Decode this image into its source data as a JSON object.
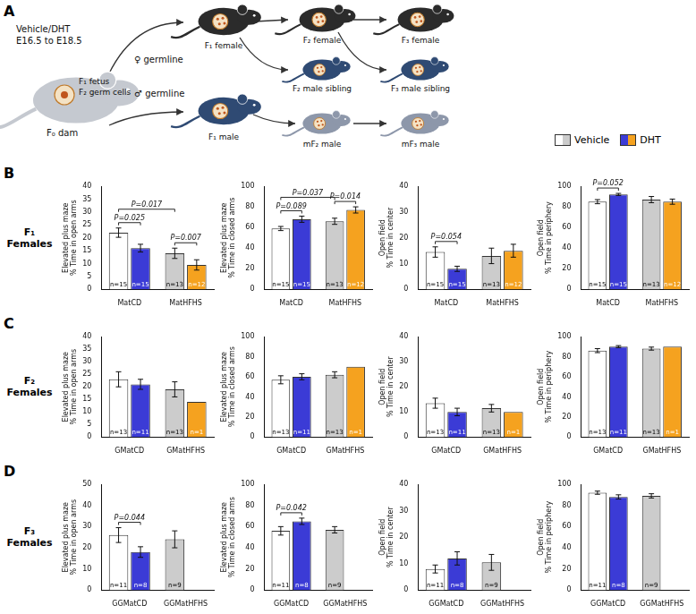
{
  "panel_a": {
    "label": "A",
    "treatment": [
      "Vehicle/DHT",
      "E16.5 to E18.5"
    ],
    "dam": [
      "F₁ fetus",
      "F₂ germ cells",
      "F₀ dam"
    ],
    "germlines": [
      "♀ germline",
      "♂ germline"
    ],
    "mice": [
      "F₁ female",
      "F₂ female",
      "F₃ female",
      "F₂ male sibling",
      "F₃ male sibling",
      "F₁ male",
      "mF₂ male",
      "mF₃ male"
    ]
  },
  "panels": [
    {
      "label": "B",
      "row_label": "F₁ Females"
    },
    {
      "label": "C",
      "row_label": "F₂ Females"
    },
    {
      "label": "D",
      "row_label": "F₃ Females"
    }
  ],
  "chart_data": [
    {
      "type": "bar",
      "y_label": [
        "Elevated plus maze",
        "% Time in open arms"
      ],
      "categories": [
        "MatCD",
        "MatHFHS"
      ],
      "series": [
        {
          "name": "Vehicle",
          "colors": [
            "#ffffff",
            "#cccccc"
          ],
          "values": [
            22,
            14
          ],
          "errors": [
            1.8,
            2.0
          ],
          "n_labels": [
            "n=15",
            "n=13"
          ]
        },
        {
          "name": "DHT",
          "colors": [
            "#3b3bd6",
            "#f5a21f"
          ],
          "values": [
            16,
            9.5
          ],
          "errors": [
            1.5,
            2.0
          ],
          "n_labels": [
            "n=15",
            "n=12"
          ]
        }
      ],
      "ylim": [
        0,
        40
      ],
      "yticks": [
        0,
        5,
        10,
        15,
        20,
        25,
        30,
        35,
        40
      ],
      "grid": false,
      "annotations": [
        {
          "between": [
            [
              0,
              0
            ],
            [
              0,
              1
            ]
          ],
          "text": "P=0.025"
        },
        {
          "between": [
            [
              0,
              0
            ],
            [
              1,
              0
            ]
          ],
          "text": "P=0.017"
        },
        {
          "between": [
            [
              1,
              0
            ],
            [
              1,
              1
            ]
          ],
          "text": "P=0.007"
        }
      ]
    },
    {
      "type": "bar",
      "y_label": [
        "Elevated plus maze",
        "% Time in closed arms"
      ],
      "categories": [
        "MatCD",
        "MatHFHS"
      ],
      "series": [
        {
          "name": "Vehicle",
          "colors": [
            "#ffffff",
            "#cccccc"
          ],
          "values": [
            59,
            66
          ],
          "errors": [
            2,
            3
          ],
          "n_labels": [
            "n=15",
            "n=13"
          ]
        },
        {
          "name": "DHT",
          "colors": [
            "#3b3bd6",
            "#f5a21f"
          ],
          "values": [
            68,
            77
          ],
          "errors": [
            3,
            3
          ],
          "n_labels": [
            "n=15",
            "n=12"
          ]
        }
      ],
      "ylim": [
        0,
        100
      ],
      "yticks": [
        0,
        20,
        40,
        60,
        80,
        100
      ],
      "grid": false,
      "annotations": [
        {
          "between": [
            [
              0,
              0
            ],
            [
              0,
              1
            ]
          ],
          "text": "P=0.089"
        },
        {
          "between": [
            [
              0,
              0
            ],
            [
              1,
              0
            ]
          ],
          "text": "P=0.037"
        },
        {
          "between": [
            [
              1,
              0
            ],
            [
              1,
              1
            ]
          ],
          "text": "P=0.014"
        }
      ]
    },
    {
      "type": "bar",
      "y_label": [
        "Open field",
        "% Time in center"
      ],
      "categories": [
        "MatCD",
        "MatHFHS"
      ],
      "series": [
        {
          "name": "Vehicle",
          "colors": [
            "#ffffff",
            "#cccccc"
          ],
          "values": [
            14.5,
            13
          ],
          "errors": [
            2,
            3
          ],
          "n_labels": [
            "n=15",
            "n=13"
          ]
        },
        {
          "name": "DHT",
          "colors": [
            "#3b3bd6",
            "#f5a21f"
          ],
          "values": [
            8,
            15
          ],
          "errors": [
            1,
            2.5
          ],
          "n_labels": [
            "n=15",
            "n=12"
          ]
        }
      ],
      "ylim": [
        0,
        40
      ],
      "yticks": [
        0,
        10,
        20,
        30,
        40
      ],
      "grid": false,
      "annotations": [
        {
          "between": [
            [
              0,
              0
            ],
            [
              0,
              1
            ]
          ],
          "text": "P=0.054"
        }
      ]
    },
    {
      "type": "bar",
      "y_label": [
        "Open field",
        "% Time in periphery"
      ],
      "categories": [
        "MatCD",
        "MatHFHS"
      ],
      "series": [
        {
          "name": "Vehicle",
          "colors": [
            "#ffffff",
            "#cccccc"
          ],
          "values": [
            85,
            87
          ],
          "errors": [
            2,
            3
          ],
          "n_labels": [
            "n=15",
            "n=13"
          ]
        },
        {
          "name": "DHT",
          "colors": [
            "#3b3bd6",
            "#f5a21f"
          ],
          "values": [
            92,
            85
          ],
          "errors": [
            1,
            2.5
          ],
          "n_labels": [
            "n=15",
            "n=12"
          ]
        }
      ],
      "ylim": [
        0,
        100
      ],
      "yticks": [
        0,
        20,
        40,
        60,
        80,
        100
      ],
      "grid": false,
      "annotations": [
        {
          "between": [
            [
              0,
              0
            ],
            [
              0,
              1
            ]
          ],
          "text": "P=0.052"
        }
      ]
    },
    {
      "type": "bar",
      "y_label": [
        "Elevated plus maze",
        "% Time in open arms"
      ],
      "categories": [
        "GMatCD",
        "GMatHFHS"
      ],
      "series": [
        {
          "name": "Vehicle",
          "colors": [
            "#ffffff",
            "#cccccc"
          ],
          "values": [
            23,
            19
          ],
          "errors": [
            3,
            3
          ],
          "n_labels": [
            "n=13",
            "n=13"
          ]
        },
        {
          "name": "DHT",
          "colors": [
            "#3b3bd6",
            "#f5a21f"
          ],
          "values": [
            21,
            14
          ],
          "errors": [
            2,
            null
          ],
          "n_labels": [
            "n=11",
            "n=1"
          ]
        }
      ],
      "ylim": [
        0,
        40
      ],
      "yticks": [
        0,
        5,
        10,
        15,
        20,
        25,
        30,
        35,
        40
      ],
      "grid": false,
      "annotations": []
    },
    {
      "type": "bar",
      "y_label": [
        "Elevated plus maze",
        "% Time in closed arms"
      ],
      "categories": [
        "GMatCD",
        "GMatHFHS"
      ],
      "series": [
        {
          "name": "Vehicle",
          "colors": [
            "#ffffff",
            "#cccccc"
          ],
          "values": [
            57,
            62
          ],
          "errors": [
            4,
            3
          ],
          "n_labels": [
            "n=13",
            "n=13"
          ]
        },
        {
          "name": "DHT",
          "colors": [
            "#3b3bd6",
            "#f5a21f"
          ],
          "values": [
            60,
            70
          ],
          "errors": [
            3,
            null
          ],
          "n_labels": [
            "n=11",
            "n=1"
          ]
        }
      ],
      "ylim": [
        0,
        100
      ],
      "yticks": [
        0,
        20,
        40,
        60,
        80,
        100
      ],
      "grid": false,
      "annotations": []
    },
    {
      "type": "bar",
      "y_label": [
        "Open field",
        "% Time in center"
      ],
      "categories": [
        "GMatCD",
        "GMatHFHS"
      ],
      "series": [
        {
          "name": "Vehicle",
          "colors": [
            "#ffffff",
            "#cccccc"
          ],
          "values": [
            13.5,
            11.5
          ],
          "errors": [
            2,
            1.5
          ],
          "n_labels": [
            "n=13",
            "n=13"
          ]
        },
        {
          "name": "DHT",
          "colors": [
            "#3b3bd6",
            "#f5a21f"
          ],
          "values": [
            10,
            10
          ],
          "errors": [
            1.5,
            null
          ],
          "n_labels": [
            "n=11",
            "n=1"
          ]
        }
      ],
      "ylim": [
        0,
        40
      ],
      "yticks": [
        0,
        10,
        20,
        30,
        40
      ],
      "grid": false,
      "annotations": []
    },
    {
      "type": "bar",
      "y_label": [
        "Open field",
        "% Time in periphery"
      ],
      "categories": [
        "GMatCD",
        "GMatHFHS"
      ],
      "series": [
        {
          "name": "Vehicle",
          "colors": [
            "#ffffff",
            "#cccccc"
          ],
          "values": [
            86,
            88
          ],
          "errors": [
            2,
            1.5
          ],
          "n_labels": [
            "n=13",
            "n=13"
          ]
        },
        {
          "name": "DHT",
          "colors": [
            "#3b3bd6",
            "#f5a21f"
          ],
          "values": [
            90,
            90
          ],
          "errors": [
            1,
            null
          ],
          "n_labels": [
            "n=11",
            "n=1"
          ]
        }
      ],
      "ylim": [
        0,
        100
      ],
      "yticks": [
        0,
        20,
        40,
        60,
        80,
        100
      ],
      "grid": false,
      "annotations": []
    },
    {
      "type": "bar",
      "y_label": [
        "Elevated plus maze",
        "% Time in open arms"
      ],
      "categories": [
        "GGMatCD",
        "GGMatHFHS"
      ],
      "series": [
        {
          "name": "Vehicle",
          "colors": [
            "#ffffff",
            "#cccccc"
          ],
          "values": [
            26,
            24
          ],
          "errors": [
            3.5,
            4
          ],
          "n_labels": [
            "n=11",
            "n=9"
          ]
        },
        {
          "name": "DHT",
          "colors": [
            "#3b3bd6",
            null
          ],
          "values": [
            18,
            null
          ],
          "errors": [
            2.5,
            null
          ],
          "n_labels": [
            "n=8",
            null
          ]
        }
      ],
      "ylim": [
        0,
        50
      ],
      "yticks": [
        0,
        10,
        20,
        30,
        40,
        50
      ],
      "grid": false,
      "annotations": [
        {
          "between": [
            [
              0,
              0
            ],
            [
              0,
              1
            ]
          ],
          "text": "P=0.044"
        }
      ]
    },
    {
      "type": "bar",
      "y_label": [
        "Elevated plus maze",
        "% Time in closed arms"
      ],
      "categories": [
        "GGMatCD",
        "GGMatHFHS"
      ],
      "series": [
        {
          "name": "Vehicle",
          "colors": [
            "#ffffff",
            "#cccccc"
          ],
          "values": [
            56,
            57
          ],
          "errors": [
            4,
            3
          ],
          "n_labels": [
            "n=11",
            "n=9"
          ]
        },
        {
          "name": "DHT",
          "colors": [
            "#3b3bd6",
            null
          ],
          "values": [
            65,
            null
          ],
          "errors": [
            3,
            null
          ],
          "n_labels": [
            "n=8",
            null
          ]
        }
      ],
      "ylim": [
        0,
        100
      ],
      "yticks": [
        0,
        20,
        40,
        60,
        80,
        100
      ],
      "grid": false,
      "annotations": [
        {
          "between": [
            [
              0,
              0
            ],
            [
              0,
              1
            ]
          ],
          "text": "P=0.042"
        }
      ]
    },
    {
      "type": "bar",
      "y_label": [
        "Open field",
        "% Time in center"
      ],
      "categories": [
        "GGMatCD",
        "GGMatHFHS"
      ],
      "series": [
        {
          "name": "Vehicle",
          "colors": [
            "#ffffff",
            "#cccccc"
          ],
          "values": [
            8,
            10.5
          ],
          "errors": [
            1.5,
            3
          ],
          "n_labels": [
            "n=11",
            "n=9"
          ]
        },
        {
          "name": "DHT",
          "colors": [
            "#3b3bd6",
            null
          ],
          "values": [
            12,
            null
          ],
          "errors": [
            2.5,
            null
          ],
          "n_labels": [
            "n=8",
            null
          ]
        }
      ],
      "ylim": [
        0,
        40
      ],
      "yticks": [
        0,
        10,
        20,
        30,
        40
      ],
      "grid": false,
      "annotations": []
    },
    {
      "type": "bar",
      "y_label": [
        "Open field",
        "% Time in periphery"
      ],
      "categories": [
        "GGMatCD",
        "GGMatHFHS"
      ],
      "series": [
        {
          "name": "Vehicle",
          "colors": [
            "#ffffff",
            "#cccccc"
          ],
          "values": [
            92,
            89
          ],
          "errors": [
            1.5,
            2
          ],
          "n_labels": [
            "n=11",
            "n=9"
          ]
        },
        {
          "name": "DHT",
          "colors": [
            "#3b3bd6",
            null
          ],
          "values": [
            88,
            null
          ],
          "errors": [
            2,
            null
          ],
          "n_labels": [
            "n=8",
            null
          ]
        }
      ],
      "ylim": [
        0,
        100
      ],
      "yticks": [
        0,
        20,
        40,
        60,
        80,
        100
      ],
      "grid": false,
      "annotations": []
    }
  ]
}
